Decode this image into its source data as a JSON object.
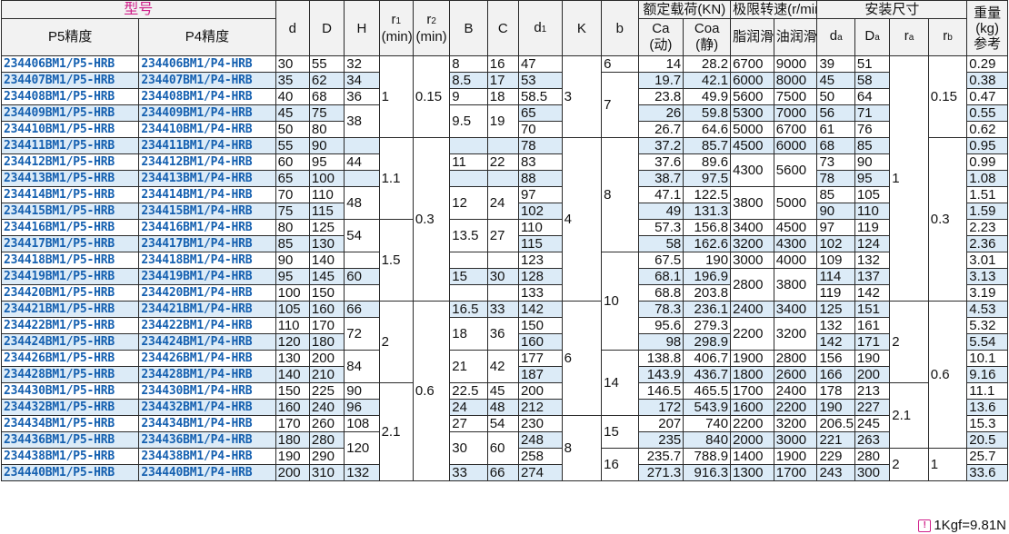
{
  "header": {
    "model": "型号",
    "p5": "P5精度",
    "p4": "P4精度",
    "d": "d",
    "D": "D",
    "H": "H",
    "r1_main": "r",
    "r1_sub": "1",
    "r2_main": "r",
    "r2_sub": "2",
    "rmin": "(min)",
    "B": "B",
    "C": "C",
    "d1_main": "d",
    "d1_sub": "1",
    "K": "K",
    "b": "b",
    "load": "额定载荷(KN)",
    "ca_main": "Ca",
    "ca_sub": "(动)",
    "coa_main": "Coa",
    "coa_sub": "(静)",
    "speed": "极限转速(r/min)",
    "grease": "脂润滑",
    "oil": "油润滑",
    "install": "安装尺寸",
    "da_main": "d",
    "da_sub": "a",
    "Da_main": "D",
    "Da_sub": "a",
    "ra_main": "r",
    "ra_sub": "a",
    "rb_main": "r",
    "rb_sub": "b",
    "weight1": "重量",
    "weight2": "(kg)",
    "weight3": "参考"
  },
  "rows": [
    {
      "p5": "234406BM1/P5-HRB",
      "p4": "234406BM1/P4-HRB",
      "d": "30",
      "D": "55",
      "H": "32",
      "B": "8",
      "C": "16",
      "d1": "47",
      "b": "6",
      "ca": "14",
      "coa": "28.2",
      "grease": "6700",
      "oil": "9000",
      "da": "39",
      "Da": "51",
      "w": "0.29"
    },
    {
      "p5": "234407BM1/P5-HRB",
      "p4": "234407BM1/P4-HRB",
      "d": "35",
      "D": "62",
      "H": "34",
      "B": "8.5",
      "C": "17",
      "d1": "53",
      "ca": "19.7",
      "coa": "42.1",
      "grease": "6000",
      "oil": "8000",
      "da": "45",
      "Da": "58",
      "w": "0.38"
    },
    {
      "p5": "234408BM1/P5-HRB",
      "p4": "234408BM1/P4-HRB",
      "d": "40",
      "D": "68",
      "H": "36",
      "B": "9",
      "C": "18",
      "d1": "58.5",
      "ca": "23.8",
      "coa": "49.9",
      "grease": "5600",
      "oil": "7500",
      "da": "50",
      "Da": "64",
      "w": "0.47"
    },
    {
      "p5": "234409BM1/P5-HRB",
      "p4": "234409BM1/P4-HRB",
      "d": "45",
      "D": "75",
      "d1": "65",
      "ca": "26",
      "coa": "59.8",
      "grease": "5300",
      "oil": "7000",
      "da": "56",
      "Da": "71",
      "w": "0.55"
    },
    {
      "p5": "234410BM1/P5-HRB",
      "p4": "234410BM1/P4-HRB",
      "d": "50",
      "D": "80",
      "d1": "70",
      "ca": "26.7",
      "coa": "64.6",
      "grease": "5000",
      "oil": "6700",
      "da": "61",
      "Da": "76",
      "w": "0.62"
    },
    {
      "p5": "234411BM1/P5-HRB",
      "p4": "234411BM1/P4-HRB",
      "d": "55",
      "D": "90",
      "d1": "78",
      "ca": "37.2",
      "coa": "85.7",
      "grease": "4500",
      "oil": "6000",
      "da": "68",
      "Da": "85",
      "w": "0.95"
    },
    {
      "p5": "234412BM1/P5-HRB",
      "p4": "234412BM1/P4-HRB",
      "d": "60",
      "D": "95",
      "H": "44",
      "B": "11",
      "C": "22",
      "d1": "83",
      "ca": "37.6",
      "coa": "89.6",
      "da": "73",
      "Da": "90",
      "w": "0.99"
    },
    {
      "p5": "234413BM1/P5-HRB",
      "p4": "234413BM1/P4-HRB",
      "d": "65",
      "D": "100",
      "d1": "88",
      "ca": "38.7",
      "coa": "97.5",
      "da": "78",
      "Da": "95",
      "w": "1.08"
    },
    {
      "p5": "234414BM1/P5-HRB",
      "p4": "234414BM1/P4-HRB",
      "d": "70",
      "D": "110",
      "d1": "97",
      "ca": "47.1",
      "coa": "122.5",
      "da": "85",
      "Da": "105",
      "w": "1.51"
    },
    {
      "p5": "234415BM1/P5-HRB",
      "p4": "234415BM1/P4-HRB",
      "d": "75",
      "D": "115",
      "d1": "102",
      "ca": "49",
      "coa": "131.3",
      "da": "90",
      "Da": "110",
      "w": "1.59"
    },
    {
      "p5": "234416BM1/P5-HRB",
      "p4": "234416BM1/P4-HRB",
      "d": "80",
      "D": "125",
      "d1": "110",
      "ca": "57.3",
      "coa": "156.8",
      "grease": "3400",
      "oil": "4500",
      "da": "97",
      "Da": "119",
      "w": "2.23"
    },
    {
      "p5": "234417BM1/P5-HRB",
      "p4": "234417BM1/P4-HRB",
      "d": "85",
      "D": "130",
      "d1": "115",
      "ca": "58",
      "coa": "162.6",
      "grease": "3200",
      "oil": "4300",
      "da": "102",
      "Da": "124",
      "w": "2.36"
    },
    {
      "p5": "234418BM1/P5-HRB",
      "p4": "234418BM1/P4-HRB",
      "d": "90",
      "D": "140",
      "d1": "123",
      "ca": "67.5",
      "coa": "190",
      "grease": "3000",
      "oil": "4000",
      "da": "109",
      "Da": "132",
      "w": "3.01"
    },
    {
      "p5": "234419BM1/P5-HRB",
      "p4": "234419BM1/P4-HRB",
      "d": "95",
      "D": "145",
      "H": "60",
      "B": "15",
      "C": "30",
      "d1": "128",
      "ca": "68.1",
      "coa": "196.9",
      "da": "114",
      "Da": "137",
      "w": "3.13"
    },
    {
      "p5": "234420BM1/P5-HRB",
      "p4": "234420BM1/P4-HRB",
      "d": "100",
      "D": "150",
      "d1": "133",
      "ca": "68.8",
      "coa": "203.8",
      "da": "119",
      "Da": "142",
      "w": "3.19"
    },
    {
      "p5": "234421BM1/P5-HRB",
      "p4": "234421BM1/P4-HRB",
      "d": "105",
      "D": "160",
      "H": "66",
      "B": "16.5",
      "C": "33",
      "d1": "142",
      "ca": "78.3",
      "coa": "236.1",
      "grease": "2400",
      "oil": "3400",
      "da": "125",
      "Da": "151",
      "w": "4.53"
    },
    {
      "p5": "234422BM1/P5-HRB",
      "p4": "234422BM1/P4-HRB",
      "d": "110",
      "D": "170",
      "d1": "150",
      "ca": "95.6",
      "coa": "279.3",
      "da": "132",
      "Da": "161",
      "w": "5.32"
    },
    {
      "p5": "234424BM1/P5-HRB",
      "p4": "234424BM1/P4-HRB",
      "d": "120",
      "D": "180",
      "d1": "160",
      "ca": "98",
      "coa": "298.9",
      "da": "142",
      "Da": "171",
      "w": "5.54"
    },
    {
      "p5": "234426BM1/P5-HRB",
      "p4": "234426BM1/P4-HRB",
      "d": "130",
      "D": "200",
      "d1": "177",
      "ca": "138.8",
      "coa": "406.7",
      "grease": "1900",
      "oil": "2800",
      "da": "156",
      "Da": "190",
      "w": "10.1"
    },
    {
      "p5": "234428BM1/P5-HRB",
      "p4": "234428BM1/P4-HRB",
      "d": "140",
      "D": "210",
      "d1": "187",
      "ca": "143.9",
      "coa": "436.7",
      "grease": "1800",
      "oil": "2600",
      "da": "166",
      "Da": "200",
      "w": "9.16"
    },
    {
      "p5": "234430BM1/P5-HRB",
      "p4": "234430BM1/P4-HRB",
      "d": "150",
      "D": "225",
      "H": "90",
      "B": "22.5",
      "C": "45",
      "d1": "200",
      "ca": "146.5",
      "coa": "465.5",
      "grease": "1700",
      "oil": "2400",
      "da": "178",
      "Da": "213",
      "w": "11.1"
    },
    {
      "p5": "234432BM1/P5-HRB",
      "p4": "234432BM1/P4-HRB",
      "d": "160",
      "D": "240",
      "H": "96",
      "B": "24",
      "C": "48",
      "d1": "212",
      "ca": "172",
      "coa": "543.9",
      "grease": "1600",
      "oil": "2200",
      "da": "190",
      "Da": "227",
      "w": "13.6"
    },
    {
      "p5": "234434BM1/P5-HRB",
      "p4": "234434BM1/P4-HRB",
      "d": "170",
      "D": "260",
      "H": "108",
      "B": "27",
      "C": "54",
      "d1": "230",
      "ca": "207",
      "coa": "740",
      "grease": "2200",
      "oil": "3200",
      "da": "206.5",
      "Da": "245",
      "w": "15.3"
    },
    {
      "p5": "234436BM1/P5-HRB",
      "p4": "234436BM1/P4-HRB",
      "d": "180",
      "D": "280",
      "d1": "248",
      "ca": "235",
      "coa": "840",
      "grease": "2000",
      "oil": "3000",
      "da": "221",
      "Da": "263",
      "w": "20.5"
    },
    {
      "p5": "234438BM1/P5-HRB",
      "p4": "234438BM1/P4-HRB",
      "d": "190",
      "D": "290",
      "d1": "258",
      "ca": "235.7",
      "coa": "788.9",
      "grease": "1400",
      "oil": "1900",
      "da": "229",
      "Da": "280",
      "w": "25.7"
    },
    {
      "p5": "234440BM1/P5-HRB",
      "p4": "234440BM1/P4-HRB",
      "d": "200",
      "D": "310",
      "H": "132",
      "B": "33",
      "C": "66",
      "d1": "274",
      "ca": "271.3",
      "coa": "916.3",
      "grease": "1300",
      "oil": "1700",
      "da": "243",
      "Da": "300",
      "w": "33.6"
    }
  ],
  "groups": [
    {
      "col": "H",
      "row": 3,
      "span": 2,
      "v": "38"
    },
    {
      "col": "H",
      "row": 5,
      "span": 1,
      "v": ""
    },
    {
      "col": "H",
      "row": 7,
      "span": 1,
      "v": ""
    },
    {
      "col": "H",
      "row": 8,
      "span": 2,
      "v": "48"
    },
    {
      "col": "H",
      "row": 10,
      "span": 2,
      "v": "54"
    },
    {
      "col": "H",
      "row": 12,
      "span": 1,
      "v": ""
    },
    {
      "col": "H",
      "row": 14,
      "span": 1,
      "v": ""
    },
    {
      "col": "H",
      "row": 16,
      "span": 2,
      "v": "72"
    },
    {
      "col": "H",
      "row": 18,
      "span": 2,
      "v": "84"
    },
    {
      "col": "H",
      "row": 23,
      "span": 2,
      "v": "120"
    },
    {
      "col": "r1",
      "row": 0,
      "span": 5,
      "v": "1"
    },
    {
      "col": "r1",
      "row": 5,
      "span": 5,
      "v": "1.1"
    },
    {
      "col": "r1",
      "row": 10,
      "span": 5,
      "v": "1.5"
    },
    {
      "col": "r1",
      "row": 15,
      "span": 5,
      "v": "2"
    },
    {
      "col": "r1",
      "row": 20,
      "span": 6,
      "v": "2.1"
    },
    {
      "col": "r2",
      "row": 0,
      "span": 5,
      "v": "0.15"
    },
    {
      "col": "r2",
      "row": 5,
      "span": 10,
      "v": "0.3"
    },
    {
      "col": "r2",
      "row": 15,
      "span": 11,
      "v": "0.6"
    },
    {
      "col": "B",
      "row": 3,
      "span": 2,
      "v": "9.5"
    },
    {
      "col": "B",
      "row": 5,
      "span": 1,
      "v": ""
    },
    {
      "col": "B",
      "row": 7,
      "span": 1,
      "v": ""
    },
    {
      "col": "B",
      "row": 8,
      "span": 2,
      "v": "12"
    },
    {
      "col": "B",
      "row": 10,
      "span": 2,
      "v": "13.5"
    },
    {
      "col": "B",
      "row": 12,
      "span": 1,
      "v": ""
    },
    {
      "col": "B",
      "row": 14,
      "span": 1,
      "v": ""
    },
    {
      "col": "B",
      "row": 16,
      "span": 2,
      "v": "18"
    },
    {
      "col": "B",
      "row": 18,
      "span": 2,
      "v": "21"
    },
    {
      "col": "B",
      "row": 23,
      "span": 2,
      "v": "30"
    },
    {
      "col": "C",
      "row": 3,
      "span": 2,
      "v": "19"
    },
    {
      "col": "C",
      "row": 5,
      "span": 1,
      "v": ""
    },
    {
      "col": "C",
      "row": 7,
      "span": 1,
      "v": ""
    },
    {
      "col": "C",
      "row": 8,
      "span": 2,
      "v": "24"
    },
    {
      "col": "C",
      "row": 10,
      "span": 2,
      "v": "27"
    },
    {
      "col": "C",
      "row": 12,
      "span": 1,
      "v": ""
    },
    {
      "col": "C",
      "row": 14,
      "span": 1,
      "v": ""
    },
    {
      "col": "C",
      "row": 16,
      "span": 2,
      "v": "36"
    },
    {
      "col": "C",
      "row": 18,
      "span": 2,
      "v": "42"
    },
    {
      "col": "C",
      "row": 23,
      "span": 2,
      "v": "60"
    },
    {
      "col": "K",
      "row": 0,
      "span": 5,
      "v": "3"
    },
    {
      "col": "K",
      "row": 5,
      "span": 10,
      "v": "4"
    },
    {
      "col": "K",
      "row": 15,
      "span": 7,
      "v": "6"
    },
    {
      "col": "K",
      "row": 22,
      "span": 4,
      "v": "8"
    },
    {
      "col": "b",
      "row": 1,
      "span": 4,
      "v": "7"
    },
    {
      "col": "b",
      "row": 5,
      "span": 7,
      "v": "8"
    },
    {
      "col": "b",
      "row": 12,
      "span": 6,
      "v": "10"
    },
    {
      "col": "b",
      "row": 18,
      "span": 4,
      "v": "14"
    },
    {
      "col": "b",
      "row": 22,
      "span": 2,
      "v": "15"
    },
    {
      "col": "b",
      "row": 24,
      "span": 2,
      "v": "16"
    },
    {
      "col": "grease",
      "row": 6,
      "span": 2,
      "v": "4300"
    },
    {
      "col": "grease",
      "row": 8,
      "span": 2,
      "v": "3800"
    },
    {
      "col": "grease",
      "row": 13,
      "span": 2,
      "v": "2800"
    },
    {
      "col": "grease",
      "row": 16,
      "span": 2,
      "v": "2200"
    },
    {
      "col": "oil",
      "row": 6,
      "span": 2,
      "v": "5600"
    },
    {
      "col": "oil",
      "row": 8,
      "span": 2,
      "v": "5000"
    },
    {
      "col": "oil",
      "row": 13,
      "span": 2,
      "v": "3800"
    },
    {
      "col": "oil",
      "row": 16,
      "span": 2,
      "v": "3200"
    },
    {
      "col": "ra",
      "row": 0,
      "span": 15,
      "v": "1"
    },
    {
      "col": "ra",
      "row": 15,
      "span": 5,
      "v": "2"
    },
    {
      "col": "ra",
      "row": 20,
      "span": 4,
      "v": "2.1"
    },
    {
      "col": "ra",
      "row": 24,
      "span": 2,
      "v": "2"
    },
    {
      "col": "rb",
      "row": 0,
      "span": 5,
      "v": "0.15"
    },
    {
      "col": "rb",
      "row": 5,
      "span": 10,
      "v": "0.3"
    },
    {
      "col": "rb",
      "row": 15,
      "span": 9,
      "v": "0.6"
    },
    {
      "col": "rb",
      "row": 24,
      "span": 2,
      "v": "1"
    }
  ],
  "footnote": "1Kgf=9.81N",
  "colors": {
    "model_text": "#1560b0",
    "header_accent": "#d0208a",
    "row_alt": "#dcebf7"
  }
}
